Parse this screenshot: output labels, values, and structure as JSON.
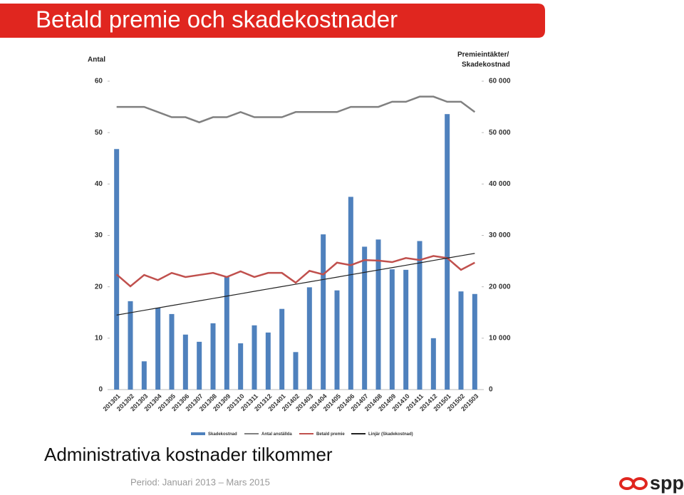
{
  "title": "Betald premie och skadekostnader",
  "subtitle": "Administrativa kostnader tilkommer",
  "period": "Period: Januari 2013 – Mars 2015",
  "logo": "spp",
  "chart_data": {
    "type": "bar",
    "ylabel": "Antal",
    "y2label": [
      "Premieintäkter/",
      "Skadekostnad"
    ],
    "categories": [
      "201301",
      "201302",
      "201303",
      "201304",
      "201305",
      "201306",
      "201307",
      "201308",
      "201309",
      "201310",
      "201311",
      "201312",
      "201401",
      "201402",
      "201403",
      "201404",
      "201405",
      "201406",
      "201407",
      "201408",
      "201409",
      "201410",
      "201411",
      "201412",
      "201501",
      "201502",
      "201503"
    ],
    "series": [
      {
        "name": "Skadekostnad",
        "type": "bar",
        "axis": "y2",
        "color": "#4f81bd",
        "values": [
          46800,
          17200,
          5500,
          15900,
          14700,
          10700,
          9300,
          12900,
          21900,
          9000,
          12500,
          11100,
          15700,
          7300,
          19900,
          30200,
          19300,
          37500,
          27800,
          29200,
          23400,
          23300,
          28900,
          10000,
          53600,
          19100,
          18600
        ]
      },
      {
        "name": "Antal anställda",
        "type": "line",
        "color": "#808080",
        "values": [
          55,
          55,
          55,
          54,
          53,
          53,
          52,
          53,
          53,
          54,
          53,
          53,
          53,
          54,
          54,
          54,
          54,
          55,
          55,
          55,
          56,
          56,
          57,
          57,
          56,
          56,
          54
        ]
      },
      {
        "name": "Betald premie",
        "type": "line",
        "axis": "y2",
        "color": "#c0504d",
        "values": [
          22400,
          20100,
          22300,
          21300,
          22700,
          21900,
          22300,
          22700,
          21900,
          23000,
          21900,
          22700,
          22700,
          20800,
          23100,
          22400,
          24700,
          24200,
          25200,
          25100,
          24800,
          25600,
          25200,
          26000,
          25600,
          23300,
          24700
        ]
      },
      {
        "name": "Linjär (Skadekostnad)",
        "type": "line",
        "axis": "y2",
        "color": "#222222",
        "values": [
          14500,
          14960,
          15420,
          15880,
          16350,
          16810,
          17270,
          17730,
          18190,
          18650,
          19120,
          19580,
          20040,
          20500,
          20960,
          21420,
          21880,
          22350,
          22810,
          23270,
          23730,
          24190,
          24650,
          25120,
          25580,
          26040,
          26500
        ]
      }
    ],
    "ylim": [
      0,
      60
    ],
    "yticks": [
      0,
      10,
      20,
      30,
      40,
      50,
      60
    ],
    "y2lim": [
      0,
      60000
    ],
    "y2ticks": [
      {
        "value": 0,
        "label": "0"
      },
      {
        "value": 10000,
        "label": "10 000"
      },
      {
        "value": 20000,
        "label": "20 000"
      },
      {
        "value": 30000,
        "label": "30 000"
      },
      {
        "value": 40000,
        "label": "40 000"
      },
      {
        "value": 50000,
        "label": "50 000"
      },
      {
        "value": 60000,
        "label": "60 000"
      }
    ]
  }
}
